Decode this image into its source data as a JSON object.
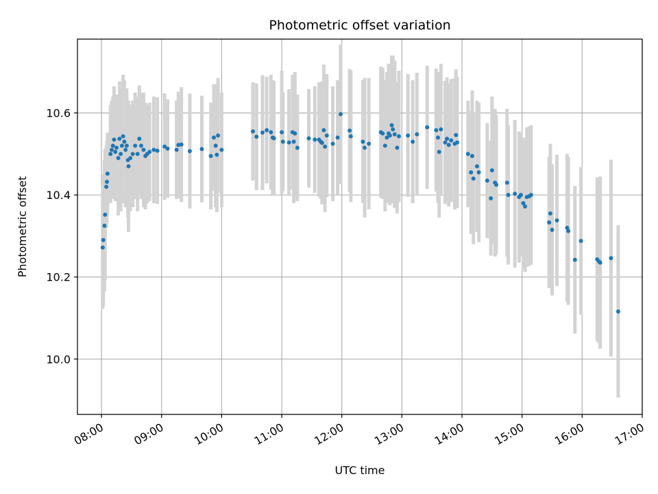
{
  "chart_data": {
    "type": "scatter",
    "title": "Photometric offset variation",
    "xlabel": "UTC time",
    "ylabel": "Photometric offset",
    "x_unit": "hours UTC",
    "xlim": [
      7.6,
      17.0
    ],
    "ylim": [
      9.865,
      10.78
    ],
    "x_ticks": [
      8,
      9,
      10,
      11,
      12,
      13,
      14,
      15,
      16,
      17
    ],
    "x_tick_labels": [
      "08:00",
      "09:00",
      "10:00",
      "11:00",
      "12:00",
      "13:00",
      "14:00",
      "15:00",
      "16:00",
      "17:00"
    ],
    "y_ticks": [
      10.0,
      10.2,
      10.4,
      10.6
    ],
    "y_tick_labels": [
      "10.0",
      "10.2",
      "10.4",
      "10.6"
    ],
    "grid": true,
    "colors": {
      "points": "#1f77b4",
      "errorbars": "#d3d3d3",
      "grid": "#b0b0b0"
    },
    "series": [
      {
        "marker": "point with vertical error bar",
        "points": [
          [
            8.02,
            10.272,
            0.15
          ],
          [
            8.03,
            10.29,
            0.16
          ],
          [
            8.05,
            10.325,
            0.16
          ],
          [
            8.06,
            10.352,
            0.16
          ],
          [
            8.08,
            10.42,
            0.1
          ],
          [
            8.09,
            10.432,
            0.1
          ],
          [
            8.1,
            10.452,
            0.1
          ],
          [
            8.15,
            10.5,
            0.12
          ],
          [
            8.17,
            10.51,
            0.12
          ],
          [
            8.19,
            10.52,
            0.12
          ],
          [
            8.21,
            10.535,
            0.13
          ],
          [
            8.23,
            10.505,
            0.12
          ],
          [
            8.25,
            10.515,
            0.13
          ],
          [
            8.28,
            10.49,
            0.14
          ],
          [
            8.3,
            10.537,
            0.14
          ],
          [
            8.32,
            10.5,
            0.14
          ],
          [
            8.34,
            10.52,
            0.14
          ],
          [
            8.36,
            10.543,
            0.15
          ],
          [
            8.38,
            10.53,
            0.15
          ],
          [
            8.4,
            10.51,
            0.14
          ],
          [
            8.42,
            10.52,
            0.14
          ],
          [
            8.44,
            10.485,
            0.14
          ],
          [
            8.45,
            10.47,
            0.16
          ],
          [
            8.48,
            10.49,
            0.13
          ],
          [
            8.52,
            10.5,
            0.13
          ],
          [
            8.56,
            10.52,
            0.13
          ],
          [
            8.6,
            10.5,
            0.14
          ],
          [
            8.63,
            10.537,
            0.13
          ],
          [
            8.66,
            10.52,
            0.13
          ],
          [
            8.7,
            10.51,
            0.14
          ],
          [
            8.73,
            10.495,
            0.13
          ],
          [
            8.76,
            10.5,
            0.12
          ],
          [
            8.8,
            10.505,
            0.12
          ],
          [
            8.87,
            10.51,
            0.13
          ],
          [
            8.93,
            10.508,
            0.13
          ],
          [
            9.05,
            10.518,
            0.13
          ],
          [
            9.1,
            10.513,
            0.12
          ],
          [
            9.25,
            10.51,
            0.12
          ],
          [
            9.28,
            10.522,
            0.13
          ],
          [
            9.33,
            10.523,
            0.14
          ],
          [
            9.47,
            10.507,
            0.14
          ],
          [
            9.67,
            10.512,
            0.13
          ],
          [
            9.82,
            10.495,
            0.13
          ],
          [
            9.87,
            10.54,
            0.13
          ],
          [
            9.9,
            10.52,
            0.15
          ],
          [
            9.92,
            10.498,
            0.14
          ],
          [
            9.94,
            10.545,
            0.14
          ],
          [
            10.0,
            10.51,
            0.14
          ],
          [
            10.52,
            10.555,
            0.12
          ],
          [
            10.58,
            10.542,
            0.13
          ],
          [
            10.68,
            10.552,
            0.14
          ],
          [
            10.75,
            10.558,
            0.13
          ],
          [
            10.82,
            10.553,
            0.14
          ],
          [
            10.85,
            10.54,
            0.14
          ],
          [
            10.87,
            10.538,
            0.14
          ],
          [
            11.0,
            10.553,
            0.15
          ],
          [
            11.02,
            10.53,
            0.12
          ],
          [
            11.12,
            10.528,
            0.13
          ],
          [
            11.18,
            10.553,
            0.14
          ],
          [
            11.2,
            10.53,
            0.15
          ],
          [
            11.22,
            10.55,
            0.15
          ],
          [
            11.26,
            10.515,
            0.13
          ],
          [
            11.45,
            10.538,
            0.12
          ],
          [
            11.55,
            10.535,
            0.13
          ],
          [
            11.62,
            10.535,
            0.14
          ],
          [
            11.65,
            10.53,
            0.14
          ],
          [
            11.67,
            10.527,
            0.15
          ],
          [
            11.7,
            10.558,
            0.16
          ],
          [
            11.72,
            10.518,
            0.16
          ],
          [
            11.75,
            10.545,
            0.15
          ],
          [
            11.85,
            10.525,
            0.14
          ],
          [
            11.93,
            10.54,
            0.14
          ],
          [
            11.98,
            10.597,
            0.17
          ],
          [
            12.13,
            10.557,
            0.15
          ],
          [
            12.15,
            10.543,
            0.16
          ],
          [
            12.35,
            10.53,
            0.15
          ],
          [
            12.38,
            10.515,
            0.17
          ],
          [
            12.45,
            10.525,
            0.16
          ],
          [
            12.65,
            10.553,
            0.16
          ],
          [
            12.68,
            10.55,
            0.16
          ],
          [
            12.72,
            10.52,
            0.16
          ],
          [
            12.75,
            10.54,
            0.16
          ],
          [
            12.78,
            10.55,
            0.17
          ],
          [
            12.8,
            10.545,
            0.17
          ],
          [
            12.83,
            10.57,
            0.17
          ],
          [
            12.85,
            10.56,
            0.18
          ],
          [
            12.88,
            10.548,
            0.18
          ],
          [
            12.92,
            10.515,
            0.16
          ],
          [
            12.95,
            10.543,
            0.16
          ],
          [
            13.1,
            10.545,
            0.15
          ],
          [
            13.18,
            10.53,
            0.15
          ],
          [
            13.25,
            10.548,
            0.15
          ],
          [
            13.42,
            10.565,
            0.15
          ],
          [
            13.57,
            10.558,
            0.15
          ],
          [
            13.6,
            10.54,
            0.16
          ],
          [
            13.62,
            10.505,
            0.16
          ],
          [
            13.65,
            10.56,
            0.16
          ],
          [
            13.72,
            10.528,
            0.15
          ],
          [
            13.75,
            10.537,
            0.15
          ],
          [
            13.78,
            10.522,
            0.15
          ],
          [
            13.82,
            10.533,
            0.15
          ],
          [
            13.88,
            10.525,
            0.16
          ],
          [
            13.9,
            10.546,
            0.16
          ],
          [
            13.92,
            10.528,
            0.16
          ],
          [
            14.1,
            10.5,
            0.13
          ],
          [
            14.15,
            10.455,
            0.15
          ],
          [
            14.17,
            10.495,
            0.16
          ],
          [
            14.19,
            10.44,
            0.16
          ],
          [
            14.25,
            10.47,
            0.16
          ],
          [
            14.28,
            10.455,
            0.17
          ],
          [
            14.42,
            10.435,
            0.14
          ],
          [
            14.48,
            10.392,
            0.14
          ],
          [
            14.5,
            10.46,
            0.18
          ],
          [
            14.55,
            10.43,
            0.18
          ],
          [
            14.57,
            10.425,
            0.17
          ],
          [
            14.75,
            10.43,
            0.18
          ],
          [
            14.77,
            10.4,
            0.17
          ],
          [
            14.88,
            10.403,
            0.18
          ],
          [
            14.95,
            10.395,
            0.16
          ],
          [
            14.98,
            10.4,
            0.15
          ],
          [
            15.02,
            10.38,
            0.16
          ],
          [
            15.05,
            10.372,
            0.16
          ],
          [
            15.08,
            10.395,
            0.17
          ],
          [
            15.12,
            10.397,
            0.17
          ],
          [
            15.15,
            10.4,
            0.17
          ],
          [
            15.45,
            10.333,
            0.16
          ],
          [
            15.47,
            10.355,
            0.17
          ],
          [
            15.5,
            10.315,
            0.16
          ],
          [
            15.58,
            10.338,
            0.16
          ],
          [
            15.75,
            10.32,
            0.18
          ],
          [
            15.77,
            10.312,
            0.18
          ],
          [
            15.88,
            10.242,
            0.18
          ],
          [
            15.98,
            10.288,
            0.18
          ],
          [
            16.25,
            10.243,
            0.2
          ],
          [
            16.28,
            10.238,
            0.2
          ],
          [
            16.3,
            10.235,
            0.21
          ],
          [
            16.48,
            10.246,
            0.24
          ],
          [
            16.6,
            10.116,
            0.21
          ]
        ]
      }
    ]
  }
}
